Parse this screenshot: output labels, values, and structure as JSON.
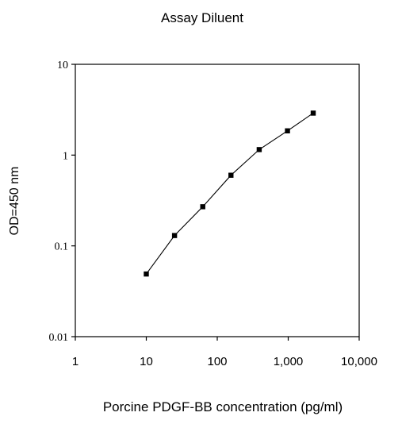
{
  "chart_data": {
    "type": "line",
    "title": "Assay Diluent",
    "xlabel": "Porcine PDGF-BB concentration (pg/ml)",
    "ylabel": "OD=450 nm",
    "x_scale": "log",
    "y_scale": "log",
    "xlim": [
      1,
      10000
    ],
    "ylim": [
      0.01,
      10
    ],
    "x_ticks": [
      1,
      10,
      100,
      1000,
      10000
    ],
    "x_tick_labels": [
      "1",
      "10",
      "100",
      "1,000",
      "10,000"
    ],
    "y_ticks": [
      0.01,
      0.1,
      1,
      10
    ],
    "y_tick_labels": [
      "0.01",
      "0.1",
      "1",
      "10"
    ],
    "grid": false,
    "legend": "none",
    "series": [
      {
        "x": [
          10,
          25,
          62.5,
          156,
          390,
          976,
          2250
        ],
        "y": [
          0.049,
          0.13,
          0.27,
          0.6,
          1.15,
          1.85,
          2.9
        ],
        "color": "#000000",
        "marker": "square"
      }
    ]
  }
}
